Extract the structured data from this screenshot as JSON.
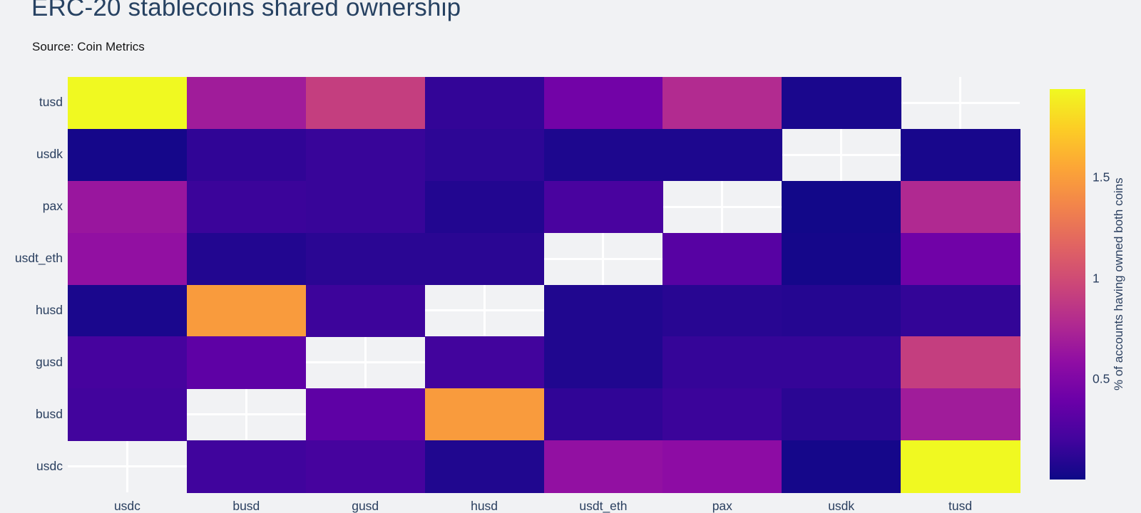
{
  "header": {
    "title": "ERC-20 stablecoins shared ownership",
    "source": "Source: Coin Metrics"
  },
  "chart_data": {
    "type": "heatmap",
    "title": "ERC-20 stablecoins shared ownership",
    "subtitle": "Source: Coin Metrics",
    "x_labels": [
      "usdc",
      "busd",
      "gusd",
      "husd",
      "usdt_eth",
      "pax",
      "usdk",
      "tusd"
    ],
    "y_labels_top_to_bottom": [
      "tusd",
      "usdk",
      "pax",
      "usdt_eth",
      "husd",
      "gusd",
      "busd",
      "usdc"
    ],
    "z_rows_top_to_bottom": [
      [
        1.94,
        0.68,
        0.91,
        0.14,
        0.43,
        0.78,
        0.05,
        null
      ],
      [
        0.03,
        0.13,
        0.16,
        0.12,
        0.06,
        0.06,
        null,
        0.04
      ],
      [
        0.64,
        0.17,
        0.16,
        0.08,
        0.23,
        null,
        0.02,
        0.77
      ],
      [
        0.6,
        0.08,
        0.11,
        0.11,
        null,
        0.3,
        0.03,
        0.42
      ],
      [
        0.05,
        1.49,
        0.18,
        null,
        0.07,
        0.1,
        0.09,
        0.14
      ],
      [
        0.22,
        0.33,
        null,
        0.2,
        0.07,
        0.15,
        0.15,
        0.91
      ],
      [
        0.2,
        null,
        0.33,
        1.49,
        0.13,
        0.17,
        0.11,
        0.68
      ],
      [
        null,
        0.19,
        0.22,
        0.07,
        0.6,
        0.57,
        0.03,
        1.94
      ]
    ],
    "zmin": 0,
    "zmax": 1.94,
    "missing_cells": "diagonal (same coin vs itself) shown as blank background",
    "colorbar": {
      "label": "% of accounts having owned both coins",
      "ticks": [
        0.5,
        1,
        1.5
      ],
      "position": "right"
    },
    "colormap": "plasma",
    "colormap_stops": [
      "#0d0887",
      "#41049d",
      "#6a00a8",
      "#8f0da4",
      "#b12a90",
      "#cc4778",
      "#e16462",
      "#f2844b",
      "#fca636",
      "#fcce25",
      "#f0f921"
    ],
    "grid": true,
    "gridline_color": "#ffffff"
  },
  "colors": {
    "background": "#f1f2f4",
    "title_color": "#274262",
    "tick_color": "#2a3f5f",
    "source_color": "#141414",
    "gridline_color": "#ffffff"
  }
}
